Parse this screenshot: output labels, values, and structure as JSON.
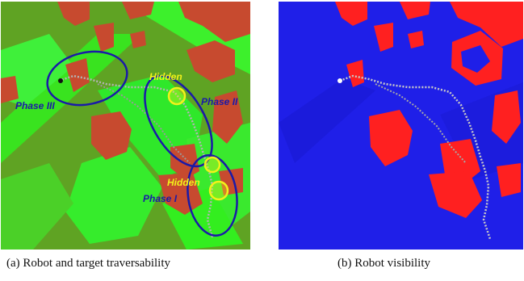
{
  "panels": [
    {
      "caption": "(a) Robot and target traversability",
      "labels": {
        "phase_1": "Phase I",
        "phase_2": "Phase II",
        "phase_3": "Phase III",
        "hidden_1": "Hidden",
        "hidden_2": "Hidden"
      }
    },
    {
      "caption": "(b) Robot visibility"
    }
  ],
  "colors": {
    "traversable_green": "#33ee1f",
    "untraversable_olive": "#5fa323",
    "obstacle_red": "#c74a2f",
    "visible_blue": "#1f1fe8",
    "nonvisible_red": "#ff2020",
    "ellipse_blue": "#1a1aa8",
    "hidden_yellow": "#f2f21a",
    "path_gray": "#b4b4b4"
  }
}
